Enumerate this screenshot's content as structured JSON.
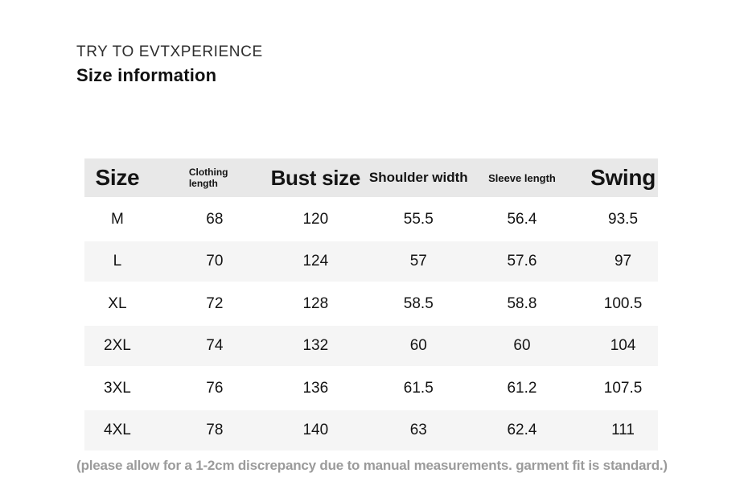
{
  "header": {
    "brand": "TRY TO EVTXPERIENCE",
    "title": "Size information"
  },
  "table": {
    "columns": [
      {
        "label": "Size"
      },
      {
        "label": "Clothing length"
      },
      {
        "label": "Bust size"
      },
      {
        "label": "Shoulder width"
      },
      {
        "label": "Sleeve length"
      },
      {
        "label": "Swing"
      }
    ],
    "rows": [
      [
        "M",
        "68",
        "120",
        "55.5",
        "56.4",
        "93.5"
      ],
      [
        "L",
        "70",
        "124",
        "57",
        "57.6",
        "97"
      ],
      [
        "XL",
        "72",
        "128",
        "58.5",
        "58.8",
        "100.5"
      ],
      [
        "2XL",
        "74",
        "132",
        "60",
        "60",
        "104"
      ],
      [
        "3XL",
        "76",
        "136",
        "61.5",
        "61.2",
        "107.5"
      ],
      [
        "4XL",
        "78",
        "140",
        "63",
        "62.4",
        "111"
      ]
    ]
  },
  "footnote": {
    "text": "(please allow for a 1-2cm discrepancy due to manual measurements. garment fit is standard.)"
  },
  "colors": {
    "header_row_bg": "#e8e8e8",
    "alt_row_bg": "#f5f5f5",
    "body_text": "#303030",
    "heading_text": "#101010",
    "footnote_text": "#9b9b9b"
  }
}
